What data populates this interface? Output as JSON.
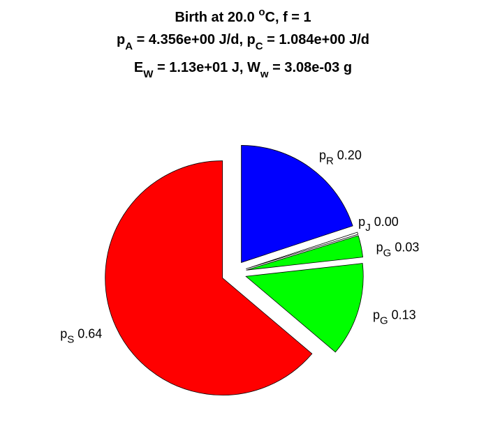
{
  "chart_data": {
    "type": "pie",
    "title_lines": [
      [
        {
          "t": "Birth at 20.0 "
        },
        {
          "t": "o",
          "sup": true
        },
        {
          "t": "C, f = 1"
        }
      ],
      [
        {
          "t": "p"
        },
        {
          "t": "A",
          "sub": true
        },
        {
          "t": " = 4.356e+00 J/d, p"
        },
        {
          "t": "C",
          "sub": true
        },
        {
          "t": " = 1.084e+00 J/d"
        }
      ],
      [
        {
          "t": "E"
        },
        {
          "t": "W",
          "sub": true
        },
        {
          "t": " = 1.13e+01 J, W"
        },
        {
          "t": "w",
          "sub": true
        },
        {
          "t": " = 3.08e-03 g"
        }
      ]
    ],
    "slices": [
      {
        "name": "p_R",
        "main": "p",
        "sub": "R",
        "label": "0.20",
        "value": 0.2,
        "color": "#0000ff"
      },
      {
        "name": "p_J",
        "main": "p",
        "sub": "J",
        "label": "0.00",
        "value": 0.003,
        "color": "#ffffff"
      },
      {
        "name": "p_G",
        "main": "p",
        "sub": "G",
        "label": "0.03",
        "value": 0.03,
        "color": "#00ff00"
      },
      {
        "name": "p_G",
        "main": "p",
        "sub": "G",
        "label": "0.13",
        "value": 0.13,
        "color": "#00ff00"
      },
      {
        "name": "p_S",
        "main": "p",
        "sub": "S",
        "label": "0.64",
        "value": 0.64,
        "color": "#ff0000"
      }
    ],
    "start_angle_deg": 90,
    "direction": "clockwise",
    "exploded": true,
    "legend": "none"
  }
}
